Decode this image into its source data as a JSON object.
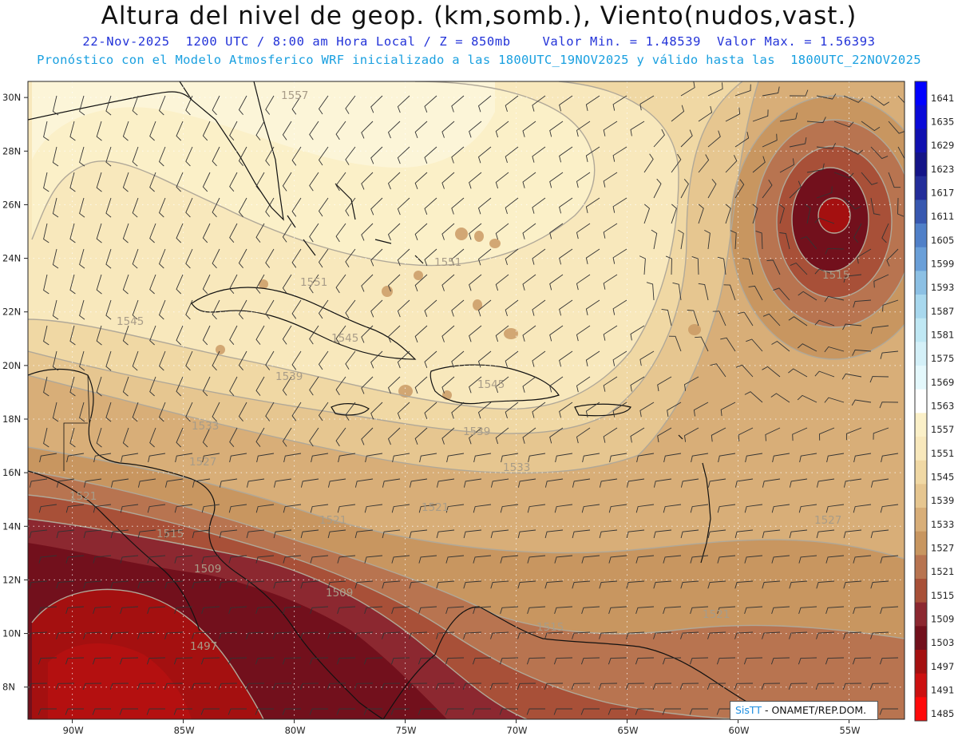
{
  "header": {
    "title": "Altura del nivel de geop. (km,somb.), Viento(nudos,vast.)",
    "line1": "22-Nov-2025  1200 UTC / 8:00 am Hora Local / Z = 850mb    Valor Min. = 1.48539  Valor Max. = 1.56393",
    "line2": "Pronóstico con el Modelo Atmosferico WRF inicializado a las 1800UTC_19NOV2025 y válido hasta las  1800UTC_22NOV2025"
  },
  "map": {
    "lon_range": [
      -92,
      -52.5
    ],
    "lat_range": [
      6.8,
      30.6
    ],
    "lat_ticks": [
      "8N",
      "10N",
      "12N",
      "14N",
      "16N",
      "18N",
      "20N",
      "22N",
      "24N",
      "26N",
      "28N",
      "30N"
    ],
    "lon_ticks": [
      "90W",
      "85W",
      "80W",
      "75W",
      "70W",
      "65W",
      "60W",
      "55W"
    ],
    "contour_labels": [
      "1557",
      "1551",
      "1551",
      "1545",
      "1545",
      "1545",
      "1539",
      "1539",
      "1533",
      "1533",
      "1527",
      "1527",
      "1521",
      "1521",
      "1521",
      "1521",
      "1515",
      "1515",
      "1515",
      "1509",
      "1509",
      "1497"
    ]
  },
  "colorbar": {
    "labels": [
      "1641",
      "1635",
      "1629",
      "1623",
      "1617",
      "1611",
      "1605",
      "1599",
      "1593",
      "1587",
      "1581",
      "1575",
      "1569",
      "1563",
      "1557",
      "1551",
      "1545",
      "1539",
      "1533",
      "1527",
      "1521",
      "1515",
      "1509",
      "1503",
      "1497",
      "1491",
      "1485"
    ],
    "colors": [
      "#0000ff",
      "#0a0ad8",
      "#1010b0",
      "#141488",
      "#232d9a",
      "#3858b0",
      "#5080c8",
      "#6a9fd8",
      "#8cc0e4",
      "#a8d8ee",
      "#c0e8f4",
      "#d4f0f8",
      "#e4f8fc",
      "#ffffff",
      "#fbf0c8",
      "#f8e8bc",
      "#f0d8a4",
      "#e6c690",
      "#d8ae78",
      "#c89660",
      "#b87450",
      "#a85038",
      "#8c2830",
      "#72101c",
      "#a41010",
      "#cc1010",
      "#ff0a0a"
    ]
  },
  "credit": {
    "sis": "SisTT",
    "org": " - ONAMET/REP.DOM."
  }
}
